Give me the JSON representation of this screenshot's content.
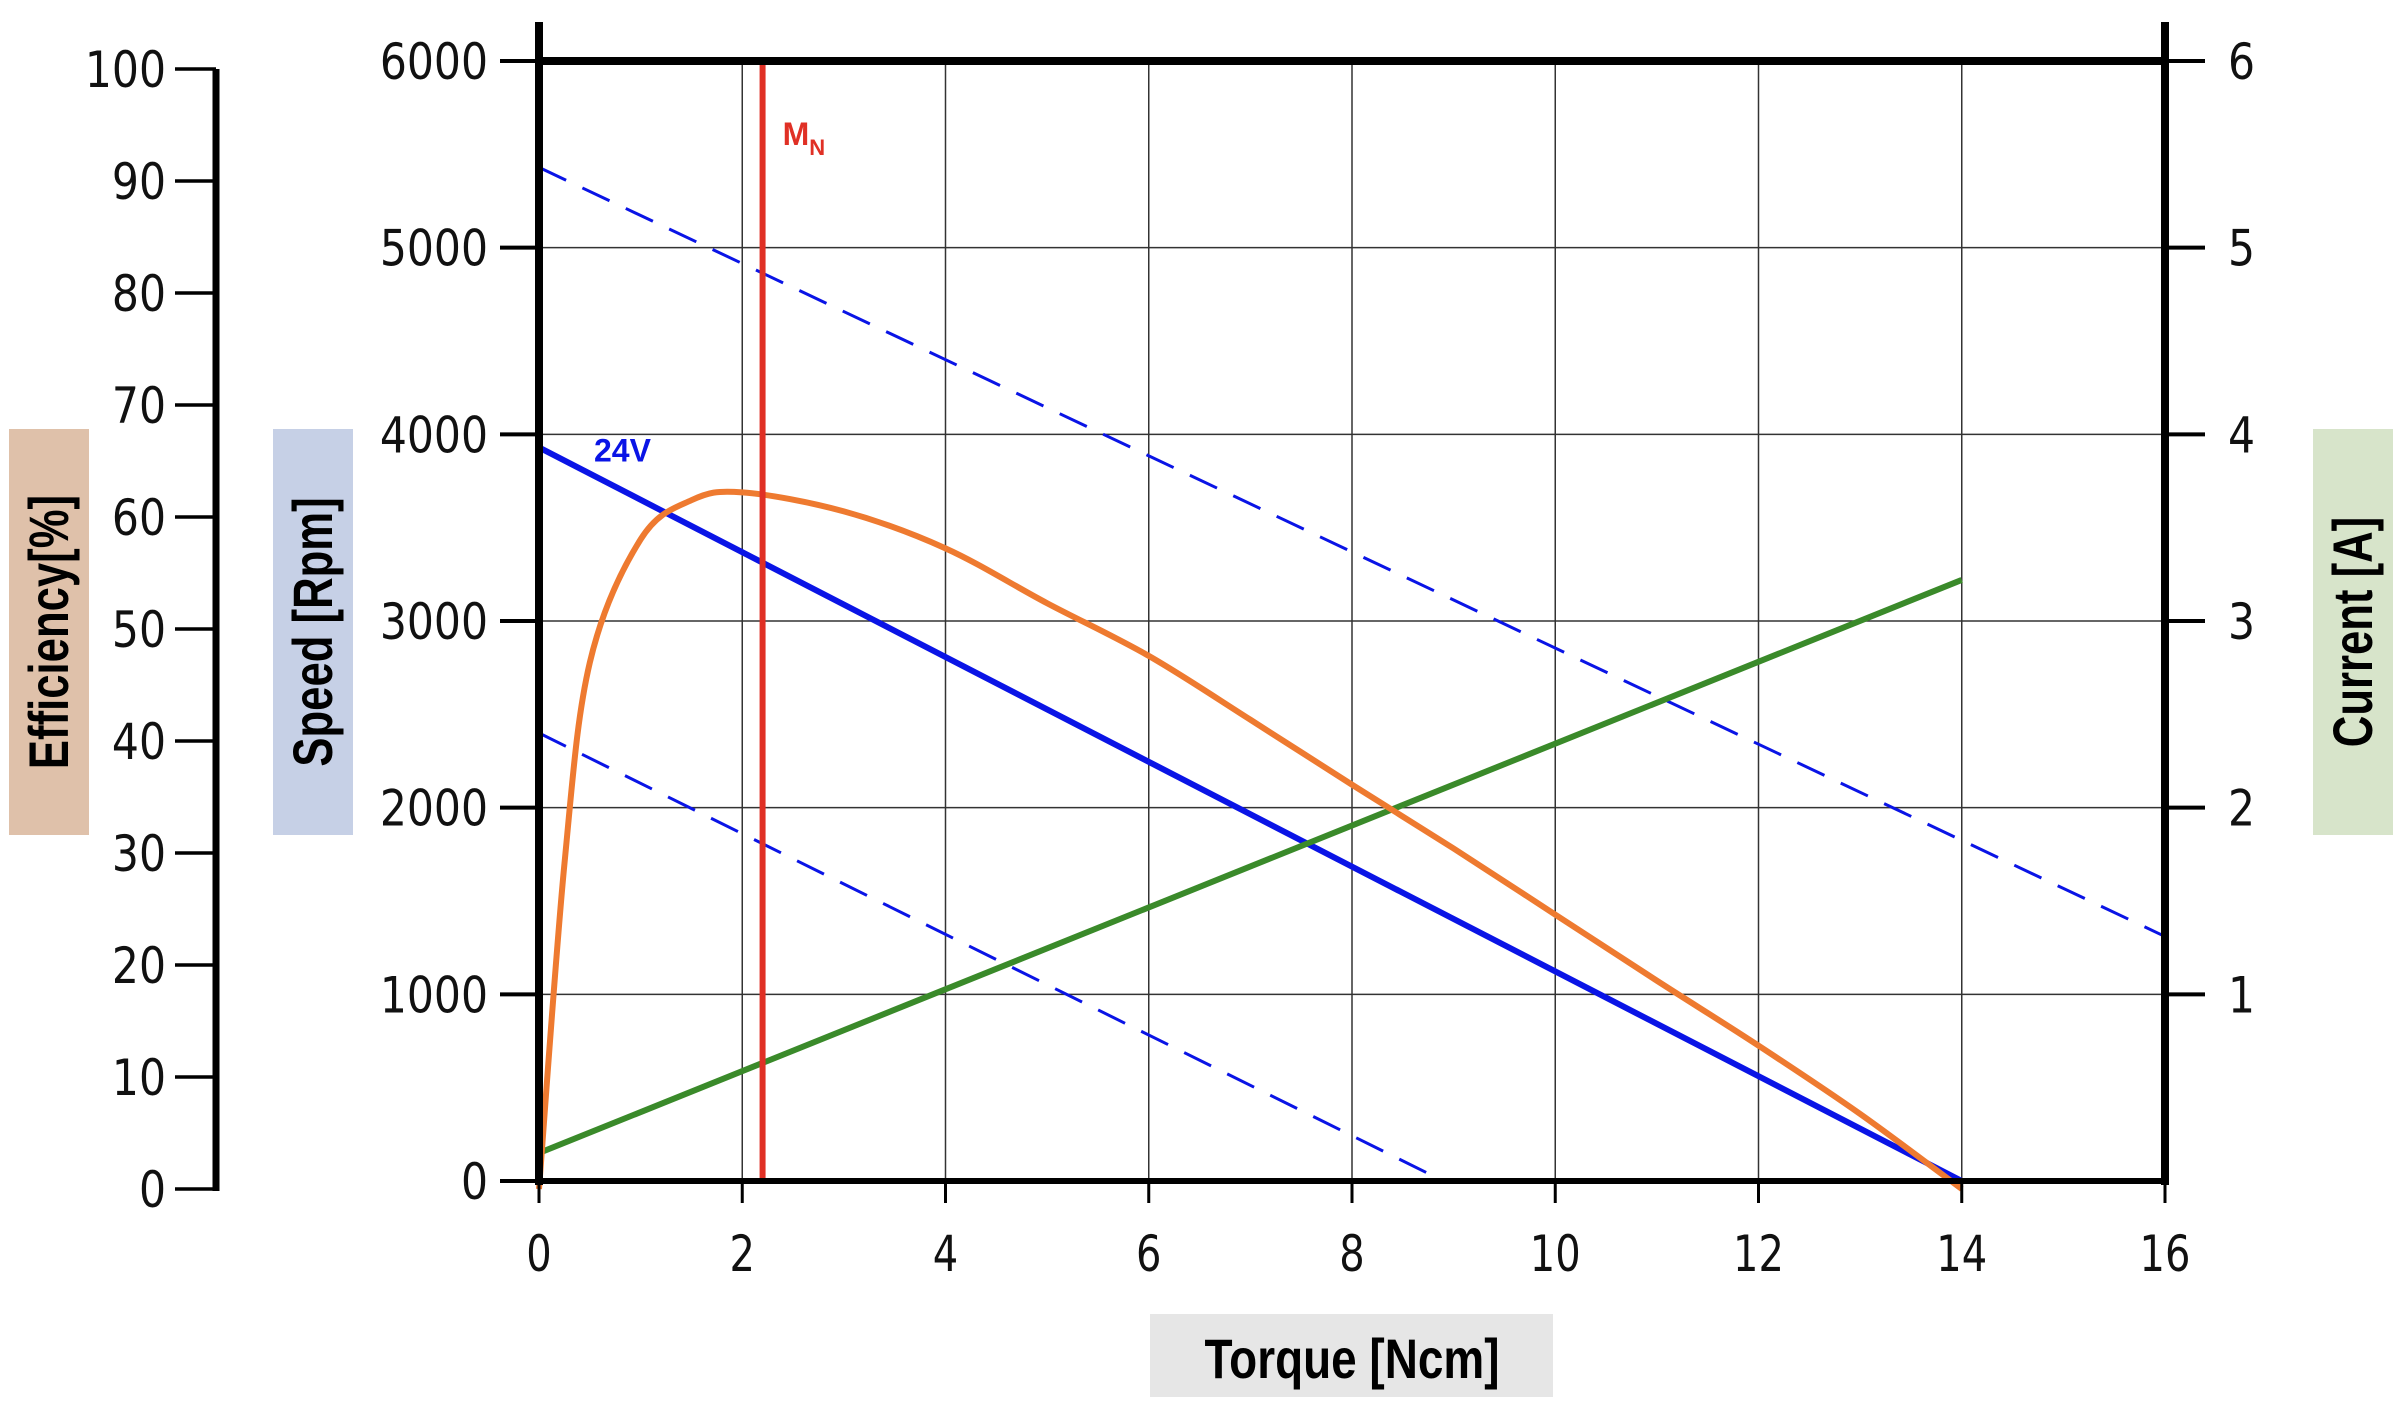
{
  "chart_data": {
    "type": "line",
    "title": "",
    "xlabel": "Torque [Ncm]",
    "xlim": [
      0,
      16
    ],
    "xticks": [
      "0",
      "2",
      "4",
      "6",
      "8",
      "10",
      "12",
      "14",
      "16"
    ],
    "grid": true,
    "axes": {
      "efficiency": {
        "label": "Efficiency[%]",
        "range": [
          0,
          100
        ],
        "ticks": [
          "0",
          "10",
          "20",
          "30",
          "40",
          "50",
          "60",
          "70",
          "80",
          "90",
          "100"
        ],
        "side": "far-left",
        "label_bg": "#dfc1aa"
      },
      "speed": {
        "label": "Speed [Rpm]",
        "range": [
          0,
          6000
        ],
        "ticks": [
          "0",
          "1000",
          "2000",
          "3000",
          "4000",
          "5000",
          "6000"
        ],
        "side": "left",
        "label_bg": "#c6d0e6"
      },
      "current": {
        "label": "Current [A]",
        "range": [
          0,
          6
        ],
        "ticks": [
          "1",
          "2",
          "3",
          "4",
          "5",
          "6"
        ],
        "side": "right",
        "label_bg": "#d7e4ca"
      }
    },
    "xlabel_bg": "#e6e6e6",
    "series": [
      {
        "name": "24V",
        "axis": "speed",
        "color": "#0a14e6",
        "style": "solid",
        "x": [
          0,
          14
        ],
        "y": [
          3930,
          0
        ]
      },
      {
        "axis": "speed",
        "color": "#0a14e6",
        "style": "dashed",
        "x": [
          0,
          16
        ],
        "y": [
          5430,
          1310
        ]
      },
      {
        "axis": "speed",
        "color": "#0a14e6",
        "style": "dashed",
        "x": [
          0,
          8.9
        ],
        "y": [
          2400,
          0
        ]
      },
      {
        "axis": "current",
        "color": "#3a8a2a",
        "style": "solid",
        "x": [
          0,
          14
        ],
        "y": [
          0.15,
          3.22
        ]
      },
      {
        "axis": "efficiency",
        "color": "#ee7a30",
        "style": "solid",
        "x": [
          0,
          0.25,
          0.5,
          1,
          1.5,
          2,
          3,
          4,
          5,
          6,
          7,
          8,
          9,
          10,
          11,
          12,
          13,
          14
        ],
        "y": [
          0,
          29,
          47,
          58,
          61.5,
          62.2,
          60.5,
          57.2,
          52.3,
          47.6,
          41.9,
          36.1,
          30.4,
          24.5,
          18.6,
          12.8,
          6.7,
          0
        ]
      }
    ],
    "annotations": [
      {
        "text": "M",
        "subscript": "N",
        "x": 2.2,
        "color": "#e03025",
        "type": "vertical-line"
      }
    ]
  }
}
